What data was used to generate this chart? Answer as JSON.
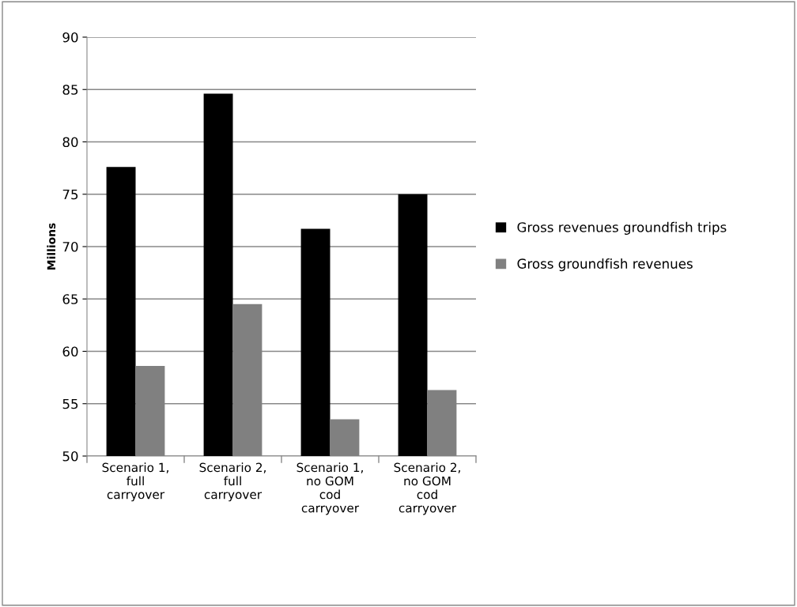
{
  "chart_data": {
    "type": "bar",
    "ylabel": "Millions",
    "categories": [
      "Scenario 1,\nfull\ncarryover",
      "Scenario 2,\nfull\ncarryover",
      "Scenario 1,\nno GOM\ncod\ncarryover",
      "Scenario 2,\nno GOM\ncod\ncarryover"
    ],
    "series": [
      {
        "name": "Gross revenues groundfish trips",
        "color": "#000000",
        "values": [
          77.6,
          84.6,
          71.7,
          75.0
        ]
      },
      {
        "name": "Gross groundfish revenues",
        "color": "#808080",
        "values": [
          58.6,
          64.5,
          53.5,
          56.3
        ]
      }
    ],
    "ylim": [
      50,
      90
    ],
    "yticks": [
      50,
      55,
      60,
      65,
      70,
      75,
      80,
      85,
      90
    ],
    "grid": "y",
    "legend": "right"
  }
}
